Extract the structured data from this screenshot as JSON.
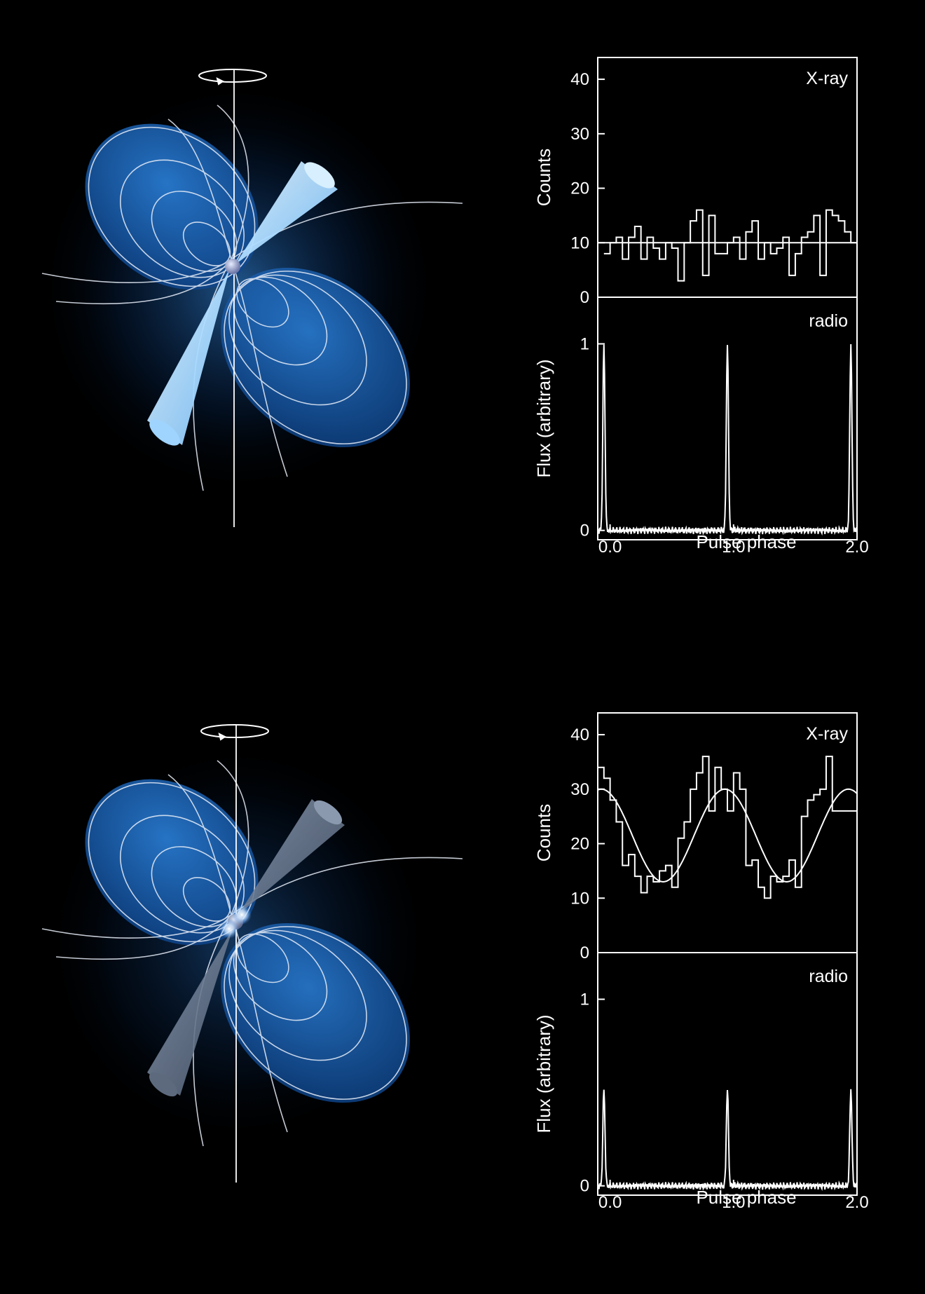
{
  "colors": {
    "background": "#000000",
    "field_blue": "#1e6fc8",
    "beam_bright": "#a9dcff",
    "beam_dim": "#6b7c93",
    "line": "#ffffff"
  },
  "illustrations": [
    {
      "beam": "bright",
      "spin_icon": "rotation-arrow-icon"
    },
    {
      "beam": "dim",
      "spin_icon": "rotation-arrow-icon"
    }
  ],
  "chart_data": [
    {
      "type": "line",
      "panels": [
        {
          "name": "xray",
          "label": "X-ray",
          "ylabel": "Counts",
          "ylim": [
            0,
            44
          ],
          "yticks": [
            "0",
            "10",
            "20",
            "30",
            "40"
          ],
          "style": "step",
          "x": [
            -0.05,
            0.0,
            0.05,
            0.1,
            0.15,
            0.2,
            0.25,
            0.3,
            0.35,
            0.4,
            0.45,
            0.5,
            0.55,
            0.6,
            0.65,
            0.7,
            0.75,
            0.8,
            0.85,
            0.9,
            0.95,
            1.0,
            1.05,
            1.1,
            1.15,
            1.2,
            1.25,
            1.3,
            1.35,
            1.4,
            1.45,
            1.5,
            1.55,
            1.6,
            1.65,
            1.7,
            1.75,
            1.8,
            1.85,
            1.9,
            1.95
          ],
          "values": [
            8,
            10,
            11,
            7,
            11,
            13,
            7,
            11,
            9,
            7,
            10,
            9,
            3,
            10,
            14,
            16,
            4,
            15,
            8,
            8,
            10,
            11,
            7,
            12,
            14,
            7,
            10,
            8,
            9,
            11,
            4,
            8,
            11,
            12,
            15,
            4,
            16,
            15,
            14,
            12,
            10
          ],
          "fit": {
            "type": "flat",
            "level": 10
          }
        },
        {
          "name": "radio",
          "label": "radio",
          "ylabel": "Flux (arbitrary)",
          "ylim": [
            -0.05,
            1.25
          ],
          "yticks": [
            "0",
            "1"
          ],
          "style": "pulse",
          "peak_height": 1.0,
          "peak_phases": [
            -0.05,
            0.95,
            1.95
          ]
        }
      ],
      "xlabel": "Pulse phase",
      "xlim": [
        -0.1,
        2.0
      ],
      "xticks": [
        "0.0",
        "1.0",
        "2.0"
      ]
    },
    {
      "type": "line",
      "panels": [
        {
          "name": "xray",
          "label": "X-ray",
          "ylabel": "Counts",
          "ylim": [
            0,
            44
          ],
          "yticks": [
            "0",
            "10",
            "20",
            "30",
            "40"
          ],
          "style": "step",
          "x": [
            -0.1,
            -0.05,
            0.0,
            0.05,
            0.1,
            0.15,
            0.2,
            0.25,
            0.3,
            0.35,
            0.4,
            0.45,
            0.5,
            0.55,
            0.6,
            0.65,
            0.7,
            0.75,
            0.8,
            0.85,
            0.9,
            0.95,
            1.0,
            1.05,
            1.1,
            1.15,
            1.2,
            1.25,
            1.3,
            1.35,
            1.4,
            1.45,
            1.5,
            1.55,
            1.6,
            1.65,
            1.7,
            1.75,
            1.8,
            1.85,
            1.9,
            1.95
          ],
          "values": [
            34,
            32,
            28,
            24,
            16,
            18,
            14,
            11,
            14,
            13,
            15,
            16,
            12,
            21,
            24,
            30,
            33,
            36,
            26,
            34,
            30,
            26,
            33,
            30,
            16,
            17,
            12,
            10,
            14,
            13,
            14,
            17,
            12,
            25,
            28,
            29,
            30,
            36,
            26,
            26,
            26,
            26
          ],
          "fit": {
            "type": "sine",
            "mean": 21.5,
            "amplitude": 8.5,
            "peak_phase": 0.93
          }
        },
        {
          "name": "radio",
          "label": "radio",
          "ylabel": "Flux (arbitrary)",
          "ylim": [
            -0.05,
            1.25
          ],
          "yticks": [
            "0",
            "1"
          ],
          "style": "pulse",
          "peak_height": 0.52,
          "peak_phases": [
            -0.05,
            0.95,
            1.95
          ]
        }
      ],
      "xlabel": "Pulse phase",
      "xlim": [
        -0.1,
        2.0
      ],
      "xticks": [
        "0.0",
        "1.0",
        "2.0"
      ]
    }
  ]
}
